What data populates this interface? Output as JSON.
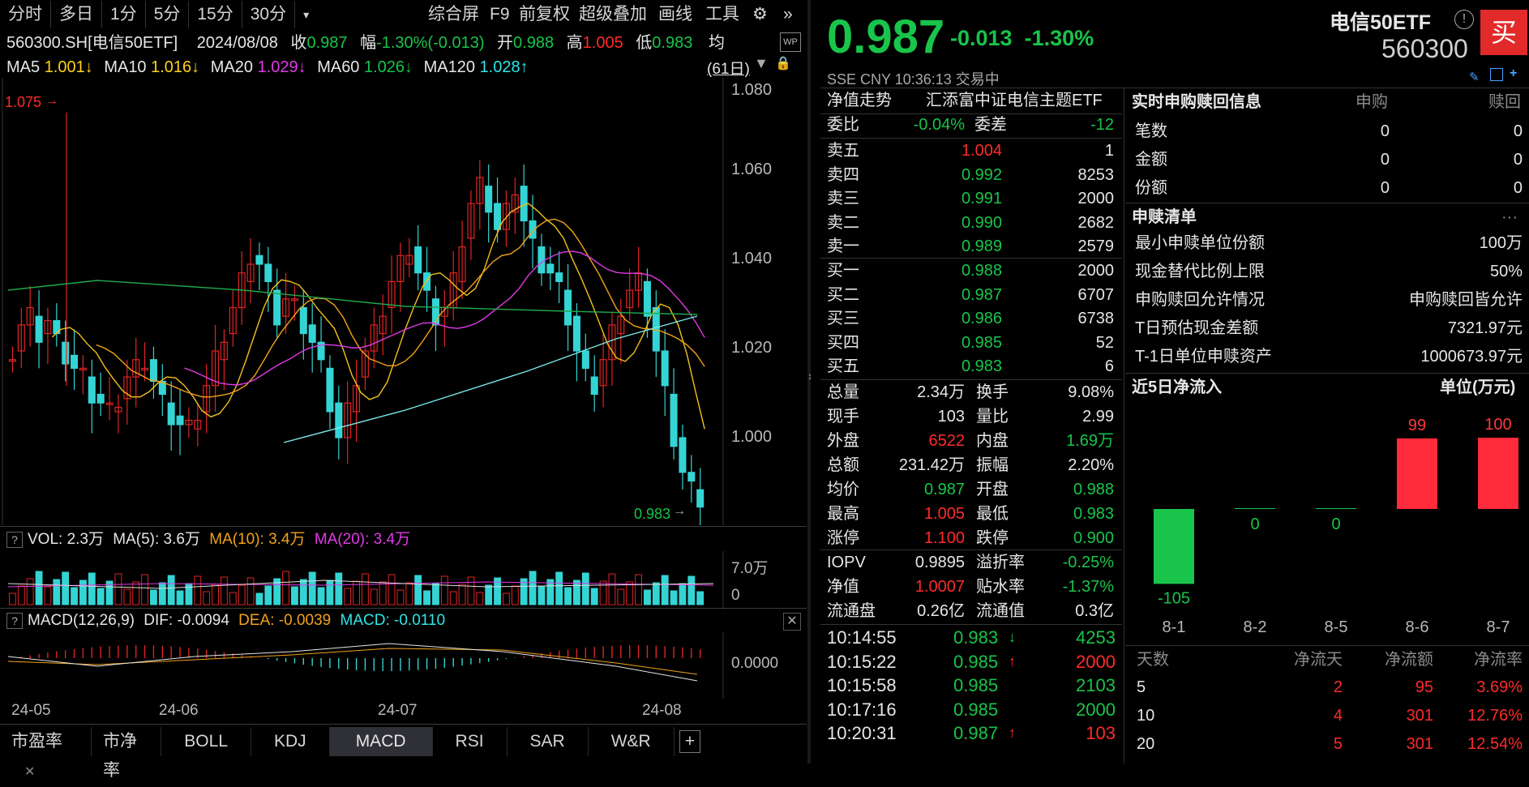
{
  "toolbar": {
    "tabs": [
      "分时",
      "多日",
      "1分",
      "5分",
      "15分",
      "30分",
      "▾"
    ],
    "right": [
      "综合屏",
      "F9",
      "前复权",
      "超级叠加",
      "画线",
      "工具",
      "⚙",
      "»"
    ]
  },
  "info": {
    "code": "560300.SH[电信50ETF]",
    "date": "2024/08/08",
    "close_label": "收",
    "close": "0.987",
    "amp_label": "幅",
    "amp": "-1.30%(-0.013)",
    "open_label": "开",
    "open": "0.988",
    "high_label": "高",
    "high": "1.005",
    "low_label": "低",
    "low": "0.983",
    "avg_label": "均",
    "wp": "WP"
  },
  "ma": {
    "ma5": "MA5",
    "ma5_val": "1.001↓",
    "ma10": "MA10",
    "ma10_val": "1.016↓",
    "ma20": "MA20",
    "ma20_val": "1.029↓",
    "ma60": "MA60",
    "ma60_val": "1.026↓",
    "ma120": "MA120",
    "ma120_val": "1.028↑",
    "days": "(61日)"
  },
  "chart_labels": {
    "max": "1.075",
    "min": "0.983"
  },
  "price_ticks": [
    "1.080",
    "1.060",
    "1.040",
    "1.020",
    "1.000"
  ],
  "vol": {
    "hdr": "VOL: 2.3万",
    "ma5": "MA(5): 3.6万",
    "ma10": "MA(10): 3.4万",
    "ma20": "MA(20): 3.4万",
    "tick_top": "7.0万",
    "tick_zero": "0"
  },
  "macd": {
    "hdr": "MACD(12,26,9)",
    "dif": "DIF: -0.0094",
    "dea": "DEA: -0.0039",
    "macd": "MACD: -0.0110",
    "tick": "0.0000"
  },
  "dates": [
    "24-05",
    "24-06",
    "24-07",
    "24-08"
  ],
  "bottom_tabs": [
    "市盈率",
    "市净率",
    "BOLL",
    "KDJ",
    "MACD",
    "RSI",
    "SAR",
    "W&R",
    "+"
  ],
  "quote": {
    "price": "0.987",
    "chg": "-0.013",
    "pct": "-1.30%",
    "market": "SSE  CNY  10:36:13  交易中",
    "name": "电信50ETF",
    "code": "560300",
    "buy": "买"
  },
  "nav": {
    "label": "净值走势",
    "fund": "汇添富中证电信主题ETF"
  },
  "weibi": {
    "label1": "委比",
    "val1": "-0.04%",
    "label2": "委差",
    "val2": "-12"
  },
  "asks": [
    {
      "label": "卖五",
      "price": "1.004",
      "vol": "1",
      "color": "red"
    },
    {
      "label": "卖四",
      "price": "0.992",
      "vol": "8253",
      "color": "grn"
    },
    {
      "label": "卖三",
      "price": "0.991",
      "vol": "2000",
      "color": "grn"
    },
    {
      "label": "卖二",
      "price": "0.990",
      "vol": "2682",
      "color": "grn"
    },
    {
      "label": "卖一",
      "price": "0.989",
      "vol": "2579",
      "color": "grn"
    }
  ],
  "bids": [
    {
      "label": "买一",
      "price": "0.988",
      "vol": "2000",
      "color": "grn"
    },
    {
      "label": "买二",
      "price": "0.987",
      "vol": "6707",
      "color": "grn"
    },
    {
      "label": "买三",
      "price": "0.986",
      "vol": "6738",
      "color": "grn"
    },
    {
      "label": "买四",
      "price": "0.985",
      "vol": "52",
      "color": "grn"
    },
    {
      "label": "买五",
      "price": "0.983",
      "vol": "6",
      "color": "grn"
    }
  ],
  "stats": [
    {
      "l1": "总量",
      "v1": "2.34万",
      "c1": "wht",
      "l2": "换手",
      "v2": "9.08%",
      "c2": "wht"
    },
    {
      "l1": "现手",
      "v1": "103",
      "c1": "wht",
      "l2": "量比",
      "v2": "2.99",
      "c2": "wht"
    },
    {
      "l1": "外盘",
      "v1": "6522",
      "c1": "red",
      "l2": "内盘",
      "v2": "1.69万",
      "c2": "grn"
    },
    {
      "l1": "总额",
      "v1": "231.42万",
      "c1": "wht",
      "l2": "振幅",
      "v2": "2.20%",
      "c2": "wht"
    },
    {
      "l1": "均价",
      "v1": "0.987",
      "c1": "grn",
      "l2": "开盘",
      "v2": "0.988",
      "c2": "grn"
    },
    {
      "l1": "最高",
      "v1": "1.005",
      "c1": "red",
      "l2": "最低",
      "v2": "0.983",
      "c2": "grn"
    },
    {
      "l1": "涨停",
      "v1": "1.100",
      "c1": "red",
      "l2": "跌停",
      "v2": "0.900",
      "c2": "grn"
    }
  ],
  "iopv": [
    {
      "l1": "IOPV",
      "v1": "0.9895",
      "c1": "wht",
      "l2": "溢折率",
      "v2": "-0.25%",
      "c2": "grn"
    },
    {
      "l1": "净值",
      "v1": "1.0007",
      "c1": "red",
      "l2": "贴水率",
      "v2": "-1.37%",
      "c2": "grn"
    },
    {
      "l1": "流通盘",
      "v1": "0.26亿",
      "c1": "wht",
      "l2": "流通值",
      "v2": "0.3亿",
      "c2": "wht"
    }
  ],
  "ticks": [
    {
      "time": "10:14:55",
      "price": "0.983",
      "arrow": "↓",
      "acol": "grn",
      "vol": "4253",
      "vcol": "grn"
    },
    {
      "time": "10:15:22",
      "price": "0.985",
      "arrow": "↑",
      "acol": "red",
      "vol": "2000",
      "vcol": "red"
    },
    {
      "time": "10:15:58",
      "price": "0.985",
      "arrow": "",
      "acol": "grn",
      "vol": "2103",
      "vcol": "grn"
    },
    {
      "time": "10:17:16",
      "price": "0.985",
      "arrow": "",
      "acol": "grn",
      "vol": "2000",
      "vcol": "grn"
    },
    {
      "time": "10:20:31",
      "price": "0.987",
      "arrow": "↑",
      "acol": "red",
      "vol": "103",
      "vcol": "red"
    }
  ],
  "subscribe": {
    "title": "实时申购赎回信息",
    "col1": "申购",
    "col2": "赎回",
    "rows": [
      {
        "label": "笔数",
        "a": "0",
        "b": "0"
      },
      {
        "label": "金额",
        "a": "0",
        "b": "0"
      },
      {
        "label": "份额",
        "a": "0",
        "b": "0"
      }
    ]
  },
  "list": {
    "title": "申赎清单",
    "more": "···",
    "rows": [
      {
        "label": "最小申赎单位份额",
        "val": "100万"
      },
      {
        "label": "现金替代比例上限",
        "val": "50%"
      },
      {
        "label": "申购赎回允许情况",
        "val": "申购赎回皆允许"
      },
      {
        "label": "T日预估现金差额",
        "val": "7321.97元"
      },
      {
        "label": "T-1日单位申赎资产",
        "val": "1000673.97元"
      }
    ]
  },
  "flow": {
    "title": "近5日净流入",
    "unit": "单位(万元)",
    "colors": {
      "pos": "#ff2a3a",
      "neg": "#19c44a"
    }
  },
  "chart_data": {
    "type": "bar",
    "title": "近5日净流入",
    "ylabel": "单位(万元)",
    "categories": [
      "8-1",
      "8-2",
      "8-5",
      "8-6",
      "8-7"
    ],
    "values": [
      -105,
      0,
      0,
      99,
      100
    ],
    "ylim": [
      -110,
      110
    ]
  },
  "flowtable": {
    "headers": [
      "天数",
      "净流天",
      "净流额",
      "净流率"
    ],
    "rows": [
      {
        "d": "5",
        "n": "2",
        "amt": "95",
        "rate": "3.69%"
      },
      {
        "d": "10",
        "n": "4",
        "amt": "301",
        "rate": "12.76%"
      },
      {
        "d": "20",
        "n": "5",
        "amt": "301",
        "rate": "12.54%"
      }
    ]
  }
}
